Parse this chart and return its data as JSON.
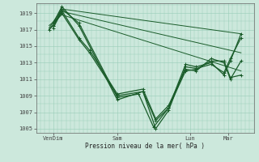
{
  "bg_color": "#cce8dc",
  "grid_color": "#99ccb8",
  "line_color": "#1a5c2a",
  "xlabel": "Pression niveau de la mer( hPa )",
  "xtick_labels": [
    "VenDim",
    "Sam",
    "Lun",
    "Mar"
  ],
  "xtick_positions": [
    0.08,
    0.38,
    0.72,
    0.9
  ],
  "ytick_min": 1005,
  "ytick_max": 1019,
  "ytick_step": 2,
  "lines": [
    {
      "x": [
        0.08,
        0.12,
        0.2,
        0.38,
        0.48,
        0.55,
        0.62,
        0.7,
        0.75,
        0.82,
        0.88,
        0.91,
        0.96
      ],
      "y": [
        1017.5,
        1019.5,
        1017.8,
        1008.8,
        1009.2,
        1005.2,
        1007.5,
        1012.8,
        1012.5,
        1013.0,
        1011.5,
        1013.2,
        1016.5
      ],
      "marker": true,
      "lw": 0.9
    },
    {
      "x": [
        0.08,
        0.12,
        0.2,
        0.38,
        0.5,
        0.56,
        0.62,
        0.7,
        0.75,
        0.82,
        0.88,
        0.91,
        0.96
      ],
      "y": [
        1017.8,
        1019.8,
        1017.5,
        1008.5,
        1009.5,
        1005.0,
        1007.2,
        1012.5,
        1012.3,
        1012.8,
        1011.8,
        1013.5,
        1016.0
      ],
      "marker": true,
      "lw": 0.9
    },
    {
      "x": [
        0.08,
        0.12,
        0.2,
        0.25,
        0.38,
        0.5,
        0.56,
        0.62,
        0.7,
        0.75,
        0.82,
        0.88,
        0.91,
        0.96
      ],
      "y": [
        1017.2,
        1019.3,
        1016.0,
        1014.5,
        1009.2,
        1009.8,
        1006.2,
        1007.8,
        1012.2,
        1012.0,
        1013.5,
        1013.0,
        1011.0,
        1013.2
      ],
      "marker": true,
      "lw": 0.9
    },
    {
      "x": [
        0.06,
        0.08,
        0.12,
        0.2,
        0.25,
        0.38,
        0.5,
        0.56,
        0.62,
        0.7,
        0.75,
        0.82,
        0.88,
        0.91,
        0.96
      ],
      "y": [
        1017.0,
        1017.5,
        1019.0,
        1015.8,
        1014.2,
        1009.0,
        1009.5,
        1006.0,
        1007.5,
        1012.0,
        1012.2,
        1013.2,
        1013.2,
        1011.2,
        1011.5
      ],
      "marker": true,
      "lw": 0.9
    },
    {
      "x": [
        0.06,
        0.12,
        0.96
      ],
      "y": [
        1017.2,
        1019.5,
        1016.5
      ],
      "marker": false,
      "lw": 0.7
    },
    {
      "x": [
        0.06,
        0.12,
        0.96
      ],
      "y": [
        1017.0,
        1019.2,
        1014.2
      ],
      "marker": false,
      "lw": 0.7
    },
    {
      "x": [
        0.06,
        0.12,
        0.96
      ],
      "y": [
        1017.5,
        1018.8,
        1012.0
      ],
      "marker": false,
      "lw": 0.7
    }
  ]
}
